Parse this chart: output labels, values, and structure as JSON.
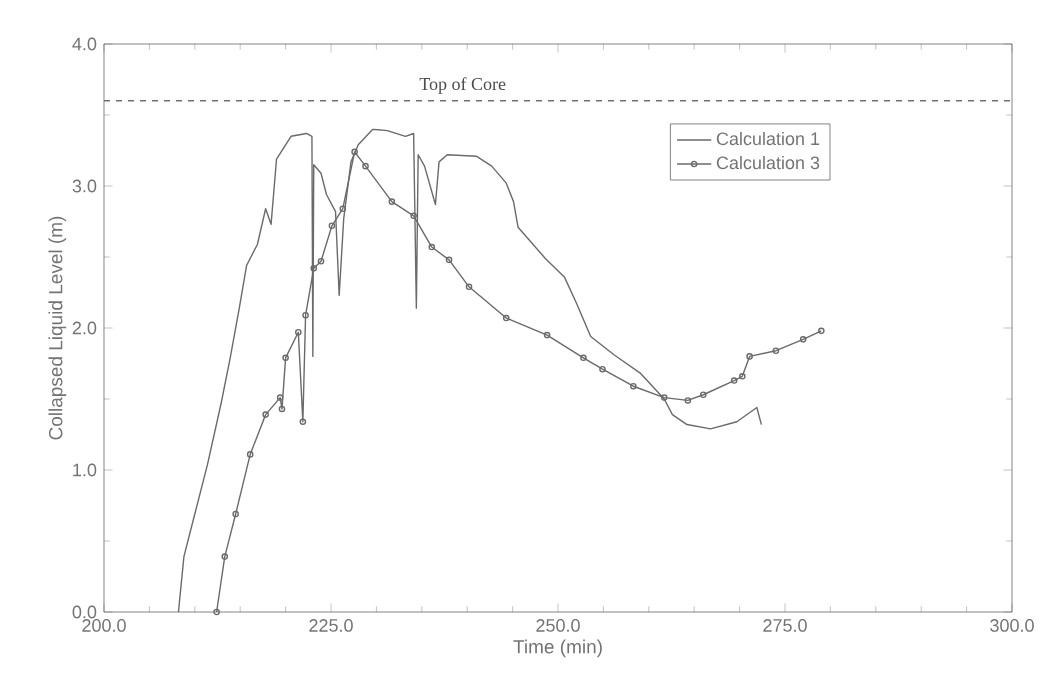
{
  "chart_data": {
    "type": "line",
    "xlabel": "Time (min)",
    "ylabel": "Collapsed Liquid Level (m)",
    "xlim": [
      200,
      300
    ],
    "ylim": [
      0,
      4
    ],
    "xticks": [
      {
        "value": 200,
        "label": "200.0"
      },
      {
        "value": 225,
        "label": "225.0"
      },
      {
        "value": 250,
        "label": "250.0"
      },
      {
        "value": 275,
        "label": "275.0"
      },
      {
        "value": 300,
        "label": "300.0"
      }
    ],
    "yticks": [
      {
        "value": 0,
        "label": "0.0"
      },
      {
        "value": 1,
        "label": "1.0"
      },
      {
        "value": 2,
        "label": "2.0"
      },
      {
        "value": 3,
        "label": "3.0"
      },
      {
        "value": 4,
        "label": "4.0"
      }
    ],
    "grid": false,
    "legend": "top right",
    "line_style": "solid",
    "ref_lines": [
      {
        "axis": "y",
        "value": 3.6,
        "label": "Top of Core",
        "line_style": "dashed",
        "color": "#707070"
      }
    ],
    "series": [
      {
        "name": "Calculation 1",
        "color": "#6a6a6a",
        "marker": "none",
        "x": [
          208.2,
          208.8,
          210.0,
          211.4,
          212.9,
          213.9,
          214.9,
          215.7,
          216.9,
          217.8,
          218.4,
          219.0,
          220.6,
          222.3,
          222.9,
          223.0,
          223.1,
          223.9,
          224.5,
          225.5,
          225.9,
          226.4,
          227.2,
          228.0,
          229.6,
          231.2,
          233.2,
          234.1,
          234.4,
          234.6,
          235.3,
          236.5,
          236.9,
          237.8,
          241.0,
          242.7,
          244.3,
          245.1,
          245.6,
          248.6,
          250.7,
          252.0,
          253.6,
          256.2,
          259.1,
          261.7,
          262.6,
          264.2,
          266.8,
          269.7,
          271.9,
          272.4
        ],
        "values": [
          0,
          0.39,
          0.69,
          1.04,
          1.47,
          1.79,
          2.14,
          2.44,
          2.59,
          2.84,
          2.73,
          3.19,
          3.35,
          3.37,
          3.35,
          1.8,
          3.15,
          3.09,
          2.94,
          2.82,
          2.23,
          2.77,
          3.17,
          3.29,
          3.4,
          3.39,
          3.35,
          3.37,
          2.14,
          3.22,
          3.14,
          2.87,
          3.17,
          3.22,
          3.21,
          3.14,
          3.02,
          2.89,
          2.71,
          2.49,
          2.36,
          2.18,
          1.94,
          1.81,
          1.68,
          1.5,
          1.39,
          1.32,
          1.29,
          1.34,
          1.44,
          1.32
        ]
      },
      {
        "name": "Calculation 3",
        "color": "#6a6a6a",
        "marker": "circle",
        "x": [
          212.4,
          213.3,
          214.5,
          216.1,
          217.8,
          219.4,
          219.6,
          220.0,
          221.4,
          221.9,
          222.2,
          223.1,
          223.9,
          225.1,
          226.3,
          227.6,
          228.8,
          231.7,
          234.1,
          236.1,
          238.0,
          240.2,
          244.3,
          248.8,
          252.8,
          254.9,
          258.3,
          261.7,
          264.3,
          266.0,
          269.4,
          270.3,
          271.1,
          274.0,
          277.0,
          279.0
        ],
        "values": [
          0,
          0.39,
          0.69,
          1.11,
          1.39,
          1.51,
          1.43,
          1.79,
          1.97,
          1.34,
          2.09,
          2.42,
          2.47,
          2.72,
          2.84,
          3.24,
          3.14,
          2.89,
          2.79,
          2.57,
          2.48,
          2.29,
          2.07,
          1.95,
          1.79,
          1.71,
          1.59,
          1.51,
          1.49,
          1.53,
          1.63,
          1.66,
          1.8,
          1.84,
          1.92,
          1.98
        ]
      }
    ]
  }
}
